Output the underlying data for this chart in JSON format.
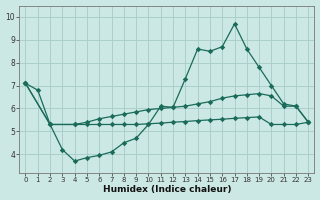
{
  "xlabel": "Humidex (Indice chaleur)",
  "xlim": [
    -0.5,
    23.5
  ],
  "ylim": [
    3.2,
    10.5
  ],
  "yticks": [
    4,
    5,
    6,
    7,
    8,
    9,
    10
  ],
  "xticks": [
    0,
    1,
    2,
    3,
    4,
    5,
    6,
    7,
    8,
    9,
    10,
    11,
    12,
    13,
    14,
    15,
    16,
    17,
    18,
    19,
    20,
    21,
    22,
    23
  ],
  "background_color": "#cce8e4",
  "grid_color": "#aacfcb",
  "line_color": "#1a6b5a",
  "line1_x": [
    0,
    1,
    2,
    3,
    4,
    5,
    6,
    7,
    8,
    9,
    10,
    11,
    12,
    13,
    14,
    15,
    16,
    17,
    18,
    19,
    20,
    21,
    22,
    23
  ],
  "line1_y": [
    7.1,
    6.8,
    5.3,
    4.2,
    3.7,
    3.85,
    3.95,
    4.1,
    4.5,
    4.7,
    5.3,
    6.1,
    6.05,
    7.3,
    8.6,
    8.5,
    8.7,
    9.7,
    8.6,
    7.8,
    7.0,
    6.2,
    6.1,
    5.4
  ],
  "line2_x": [
    0,
    2,
    4,
    5,
    6,
    7,
    8,
    9,
    10,
    11,
    12,
    13,
    14,
    15,
    16,
    17,
    18,
    19,
    20,
    21,
    22,
    23
  ],
  "line2_y": [
    7.1,
    5.3,
    5.3,
    5.4,
    5.55,
    5.65,
    5.75,
    5.85,
    5.95,
    6.0,
    6.05,
    6.1,
    6.2,
    6.3,
    6.45,
    6.55,
    6.6,
    6.65,
    6.55,
    6.1,
    6.1,
    5.4
  ],
  "line3_x": [
    0,
    2,
    4,
    5,
    6,
    7,
    8,
    9,
    10,
    11,
    12,
    13,
    14,
    15,
    16,
    17,
    18,
    19,
    20,
    21,
    22,
    23
  ],
  "line3_y": [
    7.1,
    5.3,
    5.3,
    5.3,
    5.3,
    5.3,
    5.3,
    5.3,
    5.33,
    5.36,
    5.4,
    5.43,
    5.47,
    5.5,
    5.53,
    5.57,
    5.6,
    5.63,
    5.3,
    5.3,
    5.3,
    5.4
  ]
}
